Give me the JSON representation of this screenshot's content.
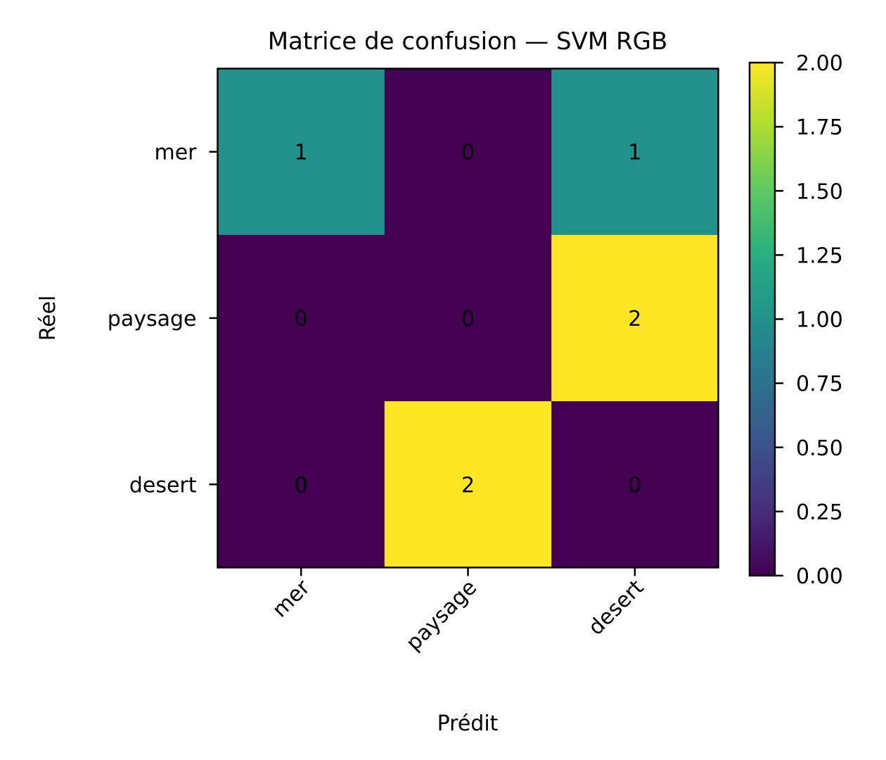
{
  "chart_data": {
    "type": "heatmap",
    "title": "Matrice de confusion — SVM RGB",
    "xlabel": "Prédit",
    "ylabel": "Réel",
    "x_categories": [
      "mer",
      "paysage",
      "desert"
    ],
    "y_categories": [
      "mer",
      "paysage",
      "desert"
    ],
    "values": [
      [
        1,
        0,
        1
      ],
      [
        0,
        0,
        2
      ],
      [
        0,
        2,
        0
      ]
    ],
    "colorscale": "viridis",
    "colorbar": {
      "range": [
        0,
        2
      ],
      "ticks": [
        "0.00",
        "0.25",
        "0.50",
        "0.75",
        "1.00",
        "1.25",
        "1.50",
        "1.75",
        "2.00"
      ]
    },
    "colors": {
      "low": "#440154",
      "mid": "#21918c",
      "high": "#fde725"
    }
  }
}
